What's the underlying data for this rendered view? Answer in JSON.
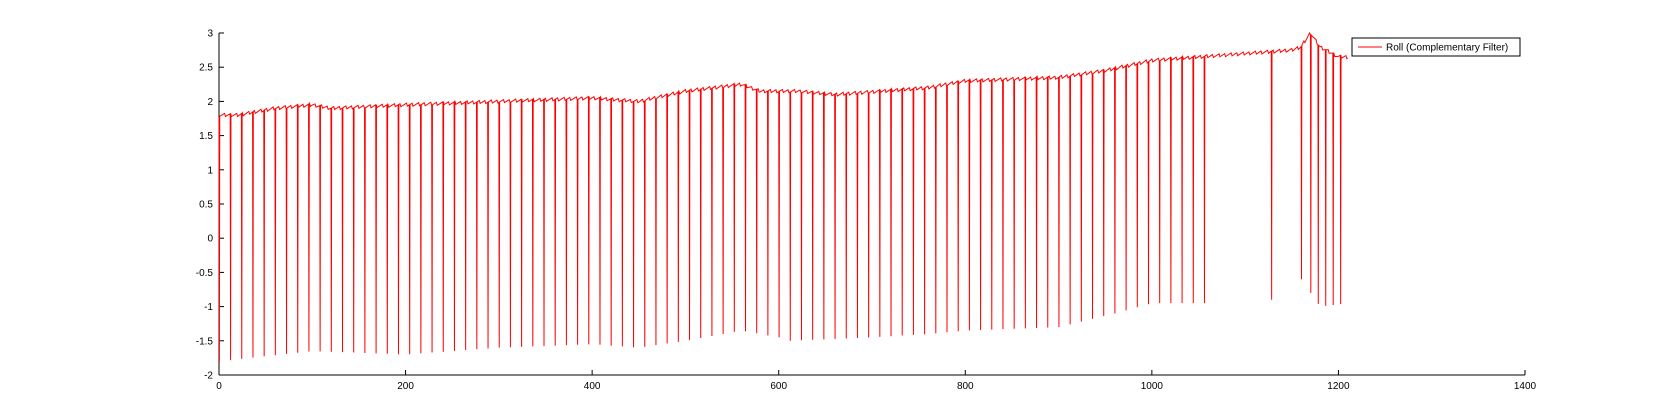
{
  "chart_data": {
    "type": "line",
    "title": "",
    "xlabel": "",
    "ylabel": "",
    "xlim": [
      0,
      1400
    ],
    "ylim": [
      -2,
      3
    ],
    "xticks": [
      0,
      200,
      400,
      600,
      800,
      1000,
      1200,
      1400
    ],
    "yticks": [
      -2,
      -1.5,
      -1,
      -0.5,
      0,
      0.5,
      1,
      1.5,
      2,
      2.5,
      3
    ],
    "grid": false,
    "legend_position": "top-right",
    "series": [
      {
        "name": "Roll (Complementary Filter)",
        "color": "#ff0000",
        "x_start": 0,
        "x_end": 1210,
        "baseline_anchors": [
          [
            0,
            1.8
          ],
          [
            20,
            1.8
          ],
          [
            60,
            1.9
          ],
          [
            100,
            1.95
          ],
          [
            120,
            1.9
          ],
          [
            200,
            1.95
          ],
          [
            300,
            2.0
          ],
          [
            400,
            2.05
          ],
          [
            450,
            2.0
          ],
          [
            500,
            2.15
          ],
          [
            560,
            2.25
          ],
          [
            580,
            2.15
          ],
          [
            620,
            2.15
          ],
          [
            660,
            2.1
          ],
          [
            760,
            2.2
          ],
          [
            800,
            2.3
          ],
          [
            900,
            2.35
          ],
          [
            950,
            2.45
          ],
          [
            1000,
            2.6
          ],
          [
            1050,
            2.65
          ],
          [
            1100,
            2.7
          ],
          [
            1150,
            2.75
          ],
          [
            1160,
            2.8
          ],
          [
            1170,
            3.0
          ],
          [
            1180,
            2.8
          ],
          [
            1200,
            2.65
          ],
          [
            1210,
            2.65
          ]
        ],
        "dip_x": [
          0,
          12,
          24,
          36,
          48,
          60,
          72,
          84,
          96,
          108,
          120,
          132,
          144,
          156,
          168,
          180,
          192,
          204,
          216,
          228,
          240,
          252,
          264,
          276,
          288,
          300,
          312,
          324,
          336,
          348,
          360,
          372,
          384,
          396,
          408,
          420,
          432,
          444,
          456,
          468,
          480,
          492,
          504,
          516,
          528,
          540,
          552,
          564,
          576,
          588,
          600,
          612,
          624,
          636,
          648,
          660,
          672,
          684,
          696,
          708,
          720,
          732,
          744,
          756,
          768,
          780,
          792,
          804,
          816,
          828,
          840,
          852,
          864,
          876,
          888,
          900,
          912,
          924,
          936,
          948,
          960,
          972,
          984,
          996,
          1008,
          1020,
          1032,
          1044,
          1056,
          1128,
          1160,
          1170,
          1178,
          1186,
          1194,
          1202
        ],
        "dip_min_anchors": [
          [
            0,
            -1.8
          ],
          [
            100,
            -1.65
          ],
          [
            200,
            -1.7
          ],
          [
            300,
            -1.6
          ],
          [
            400,
            -1.55
          ],
          [
            450,
            -1.6
          ],
          [
            500,
            -1.5
          ],
          [
            560,
            -1.35
          ],
          [
            600,
            -1.45
          ],
          [
            610,
            -1.5
          ],
          [
            700,
            -1.45
          ],
          [
            760,
            -1.4
          ],
          [
            800,
            -1.35
          ],
          [
            900,
            -1.3
          ],
          [
            960,
            -1.1
          ],
          [
            1000,
            -0.95
          ],
          [
            1050,
            -0.95
          ],
          [
            1060,
            -0.95
          ],
          [
            1128,
            -0.9
          ],
          [
            1160,
            -0.6
          ],
          [
            1180,
            -1.0
          ],
          [
            1210,
            -0.95
          ]
        ]
      }
    ]
  }
}
